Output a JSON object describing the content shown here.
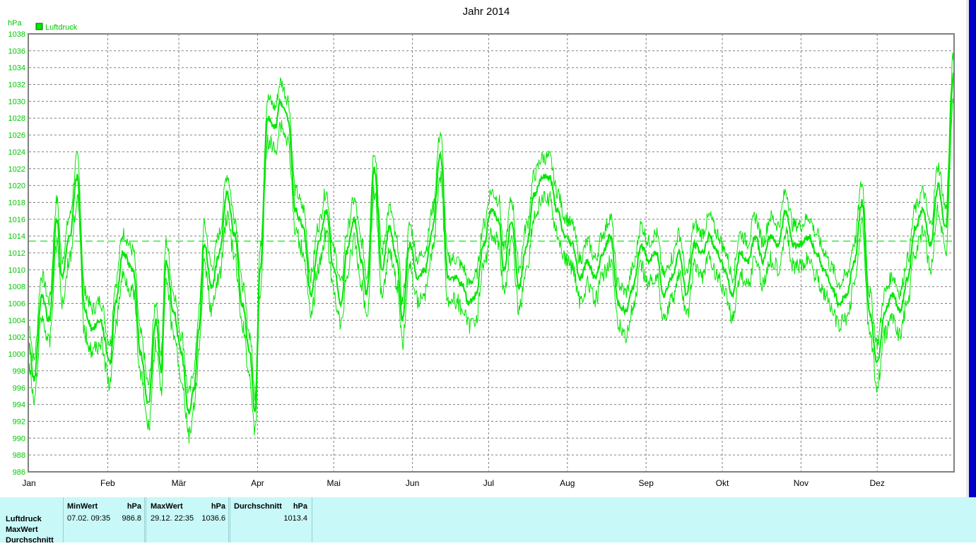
{
  "chart_data": {
    "type": "line",
    "title": "Jahr 2014",
    "ylabel": "hPa",
    "ylim": [
      986,
      1038
    ],
    "yticks": [
      986,
      988,
      990,
      992,
      994,
      996,
      998,
      1000,
      1002,
      1004,
      1006,
      1008,
      1010,
      1012,
      1014,
      1016,
      1018,
      1020,
      1022,
      1024,
      1026,
      1028,
      1030,
      1032,
      1034,
      1036,
      1038
    ],
    "months": [
      "Jan",
      "Feb",
      "Mär",
      "Apr",
      "Mai",
      "Jun",
      "Jul",
      "Aug",
      "Sep",
      "Okt",
      "Nov",
      "Dez"
    ],
    "legend": {
      "label": "Luftdruck",
      "position": "top-left"
    },
    "grid": true,
    "color": "#00e600",
    "average_line": 1013.4,
    "series_key": [
      [
        1,
        1001
      ],
      [
        3,
        997
      ],
      [
        6,
        1007
      ],
      [
        9,
        1004
      ],
      [
        12,
        1016
      ],
      [
        14,
        1009
      ],
      [
        17,
        1014
      ],
      [
        20,
        1021
      ],
      [
        23,
        1005
      ],
      [
        26,
        1003
      ],
      [
        29,
        1004
      ],
      [
        33,
        999
      ],
      [
        35,
        1006
      ],
      [
        38,
        1012
      ],
      [
        42,
        1010
      ],
      [
        45,
        1000
      ],
      [
        48,
        994
      ],
      [
        51,
        1004
      ],
      [
        53,
        998
      ],
      [
        55,
        1011
      ],
      [
        58,
        1005
      ],
      [
        61,
        1000
      ],
      [
        64,
        993
      ],
      [
        66,
        996
      ],
      [
        68,
        1003
      ],
      [
        70,
        1013
      ],
      [
        73,
        1008
      ],
      [
        76,
        1012
      ],
      [
        79,
        1019
      ],
      [
        82,
        1014
      ],
      [
        85,
        1006
      ],
      [
        88,
        1000
      ],
      [
        90,
        993
      ],
      [
        92,
        1010
      ],
      [
        95,
        1028
      ],
      [
        98,
        1027
      ],
      [
        100,
        1030
      ],
      [
        103,
        1028
      ],
      [
        106,
        1017
      ],
      [
        109,
        1015
      ],
      [
        112,
        1007
      ],
      [
        115,
        1013
      ],
      [
        118,
        1017
      ],
      [
        121,
        1010
      ],
      [
        124,
        1006
      ],
      [
        126,
        1012
      ],
      [
        129,
        1016
      ],
      [
        132,
        1011
      ],
      [
        134,
        1007
      ],
      [
        137,
        1022
      ],
      [
        140,
        1010
      ],
      [
        143,
        1015
      ],
      [
        146,
        1011
      ],
      [
        148,
        1004
      ],
      [
        151,
        1013
      ],
      [
        154,
        1009
      ],
      [
        157,
        1010
      ],
      [
        160,
        1015
      ],
      [
        163,
        1024
      ],
      [
        166,
        1009
      ],
      [
        169,
        1009
      ],
      [
        172,
        1008
      ],
      [
        174,
        1006
      ],
      [
        177,
        1007
      ],
      [
        180,
        1013
      ],
      [
        183,
        1017
      ],
      [
        186,
        1016
      ],
      [
        188,
        1010
      ],
      [
        191,
        1016
      ],
      [
        194,
        1008
      ],
      [
        197,
        1013
      ],
      [
        200,
        1019
      ],
      [
        203,
        1021
      ],
      [
        206,
        1021
      ],
      [
        209,
        1017
      ],
      [
        212,
        1014
      ],
      [
        215,
        1013
      ],
      [
        218,
        1009
      ],
      [
        221,
        1011
      ],
      [
        224,
        1009
      ],
      [
        227,
        1012
      ],
      [
        230,
        1014
      ],
      [
        233,
        1006
      ],
      [
        236,
        1005
      ],
      [
        239,
        1008
      ],
      [
        242,
        1013
      ],
      [
        245,
        1011
      ],
      [
        248,
        1012
      ],
      [
        251,
        1007
      ],
      [
        254,
        1009
      ],
      [
        257,
        1012
      ],
      [
        260,
        1007
      ],
      [
        263,
        1013
      ],
      [
        266,
        1012
      ],
      [
        269,
        1014
      ],
      [
        272,
        1012
      ],
      [
        275,
        1010
      ],
      [
        278,
        1007
      ],
      [
        281,
        1012
      ],
      [
        284,
        1011
      ],
      [
        287,
        1014
      ],
      [
        290,
        1011
      ],
      [
        293,
        1014
      ],
      [
        296,
        1013
      ],
      [
        299,
        1017
      ],
      [
        302,
        1013
      ],
      [
        305,
        1013
      ],
      [
        308,
        1014
      ],
      [
        311,
        1012
      ],
      [
        314,
        1010
      ],
      [
        317,
        1008
      ],
      [
        320,
        1006
      ],
      [
        323,
        1007
      ],
      [
        326,
        1011
      ],
      [
        329,
        1018
      ],
      [
        332,
        1005
      ],
      [
        335,
        999
      ],
      [
        338,
        1005
      ],
      [
        341,
        1007
      ],
      [
        344,
        1005
      ],
      [
        347,
        1009
      ],
      [
        350,
        1015
      ],
      [
        353,
        1017
      ],
      [
        356,
        1013
      ],
      [
        359,
        1020
      ],
      [
        362,
        1015
      ],
      [
        365,
        1033
      ]
    ],
    "stats": {
      "row_label": "Luftdruck",
      "row_labels_extra": [
        "MaxWert",
        "Durchschnitt"
      ],
      "min": {
        "header": "MinWert",
        "unit": "hPa",
        "time": "07.02.  09:35",
        "value": "986.8"
      },
      "max": {
        "header": "MaxWert",
        "unit": "hPa",
        "time": "29.12.  22:35",
        "value": "1036.6"
      },
      "avg": {
        "header": "Durchschnitt",
        "unit": "hPa",
        "value": "1013.4"
      }
    }
  }
}
